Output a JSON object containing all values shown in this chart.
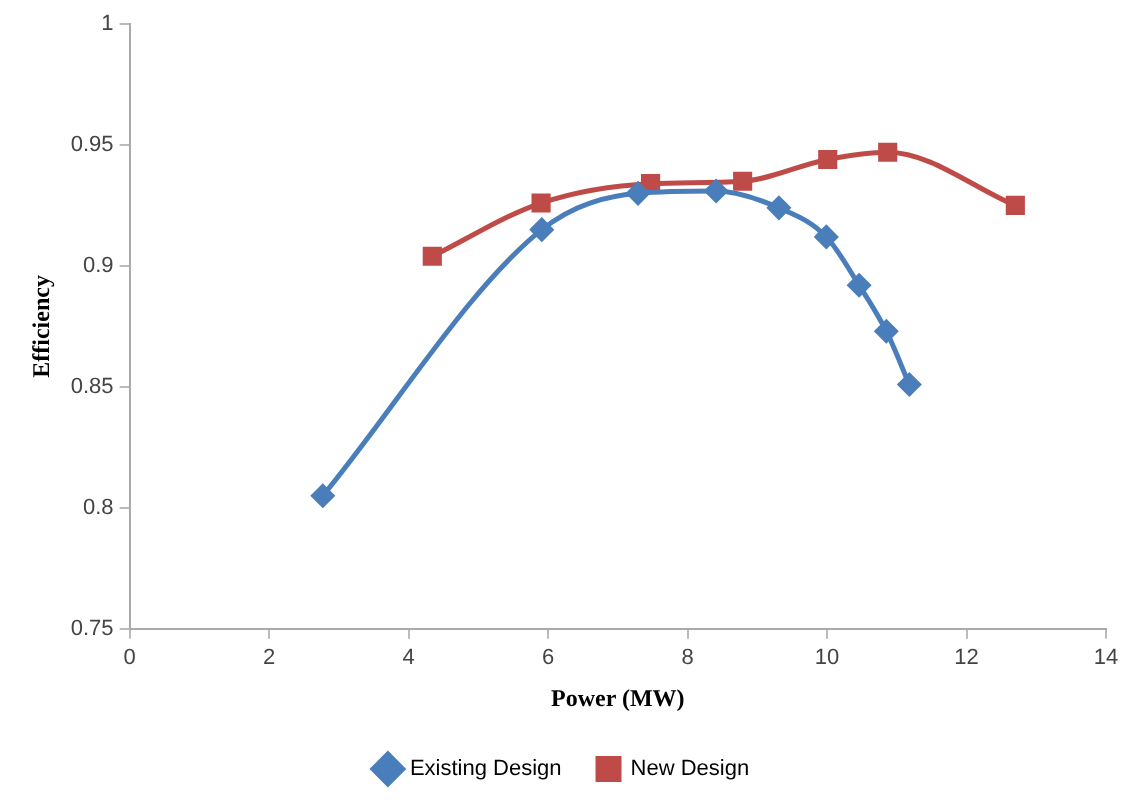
{
  "chart_data": {
    "type": "line",
    "xlabel": "Power (MW)",
    "ylabel": "Efficiency",
    "xlim": [
      0,
      14
    ],
    "xticks": [
      0,
      2,
      4,
      6,
      8,
      10,
      12,
      14
    ],
    "ylim": [
      0.75,
      1
    ],
    "yticks": [
      0.75,
      0.8,
      0.85,
      0.9,
      0.95,
      1
    ],
    "grid": false,
    "legend": "bottom",
    "series": [
      {
        "name": "Existing Design",
        "color": "#4a7ebb",
        "marker": "diamond",
        "x": [
          2.77,
          5.91,
          7.29,
          8.41,
          9.31,
          9.99,
          10.46,
          10.85,
          11.18
        ],
        "values": [
          0.805,
          0.915,
          0.93,
          0.931,
          0.924,
          0.912,
          0.892,
          0.873,
          0.851
        ]
      },
      {
        "name": "New Design",
        "color": "#be4b48",
        "marker": "square",
        "x": [
          4.34,
          5.9,
          7.47,
          8.79,
          10.01,
          10.87,
          12.7
        ],
        "values": [
          0.904,
          0.926,
          0.934,
          0.935,
          0.944,
          0.947,
          0.925
        ]
      }
    ]
  }
}
